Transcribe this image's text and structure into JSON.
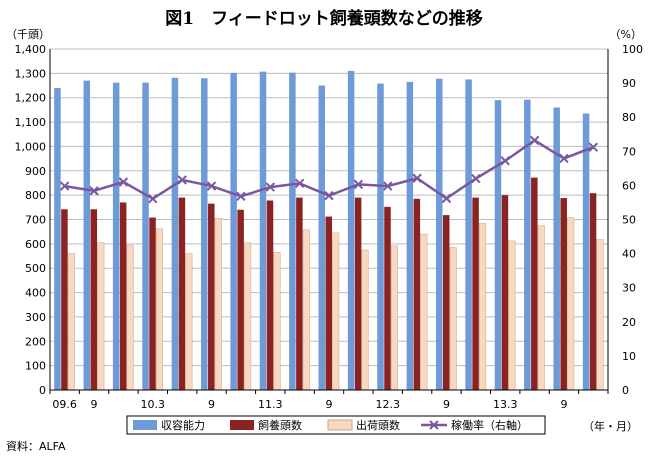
{
  "chart_data": {
    "type": "bar",
    "title": "図1　フィードロット飼養頭数などの推移",
    "left_axis_label": "（千頭）",
    "right_axis_label": "（%）",
    "x_axis_unit": "（年・月）",
    "source": "資料：ALFA",
    "left_ylim": [
      0,
      1400
    ],
    "left_ticks": [
      0,
      100,
      200,
      300,
      400,
      500,
      600,
      700,
      800,
      900,
      1000,
      1100,
      1200,
      1300,
      1400
    ],
    "left_tick_labels": [
      "0",
      "100",
      "200",
      "300",
      "400",
      "500",
      "600",
      "700",
      "800",
      "900",
      "1,000",
      "1,100",
      "1,200",
      "1,300",
      "1,400"
    ],
    "right_ylim": [
      0,
      100
    ],
    "right_ticks": [
      0,
      10,
      20,
      30,
      40,
      50,
      60,
      70,
      80,
      90,
      100
    ],
    "x_tick_labels": [
      "09.6",
      "9",
      "",
      "10.3",
      "",
      "9",
      "",
      "11.3",
      "",
      "9",
      "",
      "12.3",
      "",
      "9",
      "",
      "13.3",
      "",
      "9",
      ""
    ],
    "series": [
      {
        "name": "収容能力",
        "axis": "left",
        "kind": "bar",
        "color": "#6f9ad8",
        "values": [
          1240,
          1270,
          1262,
          1262,
          1282,
          1280,
          1302,
          1307,
          1303,
          1250,
          1310,
          1258,
          1265,
          1278,
          1275,
          1190,
          1192,
          1160,
          1135
        ]
      },
      {
        "name": "飼養頭数",
        "axis": "left",
        "kind": "bar",
        "color": "#8b2323",
        "values": [
          742,
          742,
          770,
          708,
          790,
          765,
          740,
          778,
          790,
          712,
          790,
          752,
          785,
          718,
          790,
          800,
          872,
          788,
          808
        ]
      },
      {
        "name": "出荷頭数",
        "axis": "left",
        "kind": "bar",
        "color": "#f8d9bf",
        "values": [
          560,
          605,
          595,
          662,
          560,
          705,
          605,
          565,
          658,
          645,
          575,
          592,
          640,
          585,
          685,
          612,
          675,
          708,
          618
        ]
      },
      {
        "name": "稼働率（右軸）",
        "axis": "right",
        "kind": "line",
        "color": "#7a57a0",
        "values": [
          59.8,
          58.4,
          61.0,
          56.1,
          61.6,
          59.8,
          56.8,
          59.5,
          60.6,
          57.0,
          60.3,
          59.8,
          62.1,
          56.2,
          62.0,
          67.2,
          73.2,
          67.9,
          71.2
        ]
      }
    ]
  }
}
